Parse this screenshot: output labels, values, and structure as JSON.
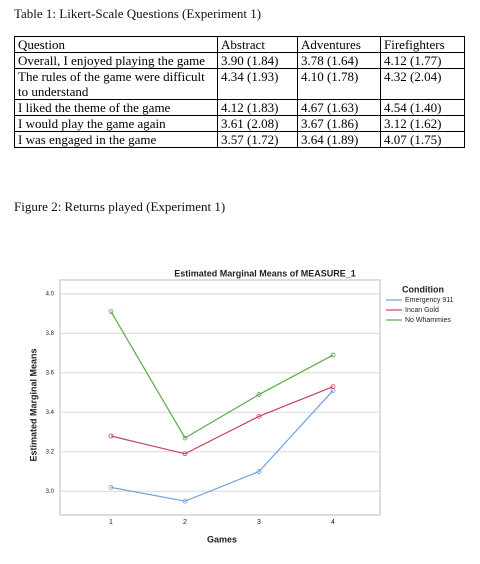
{
  "table": {
    "caption": "Table 1: Likert-Scale Questions (Experiment 1)",
    "header": [
      "Question",
      "Abstract",
      "Adventures",
      "Firefighters"
    ],
    "rows": [
      [
        "Overall, I enjoyed playing the game",
        "3.90 (1.84)",
        "3.78 (1.64)",
        "4.12 (1.77)"
      ],
      [
        "The rules of the game were difficult to understand",
        "4.34 (1.93)",
        "4.10 (1.78)",
        "4.32 (2.04)"
      ],
      [
        "I liked the theme of the game",
        "4.12 (1.83)",
        "4.67 (1.63)",
        "4.54 (1.40)"
      ],
      [
        "I would play the game again",
        "3.61 (2.08)",
        "3.67 (1.86)",
        "3.12 (1.62)"
      ],
      [
        "I was engaged in the game",
        "3.57 (1.72)",
        "3.64 (1.89)",
        "4.07 (1.75)"
      ]
    ]
  },
  "figure_caption": "Figure 2: Returns played (Experiment 1)",
  "chart_data": {
    "type": "line",
    "title": "Estimated Marginal Means of MEASURE_1",
    "x_label": "Games",
    "y_label": "Estimated Marginal Means",
    "legend_title": "Condition",
    "legend": "right",
    "categories": [
      "1",
      "2",
      "3",
      "4"
    ],
    "series": [
      {
        "name": "Emergency 911",
        "color": "#6fa0e0",
        "values": [
          3.02,
          2.95,
          3.1,
          3.51
        ]
      },
      {
        "name": "Incan Gold",
        "color": "#c8435a",
        "values": [
          3.28,
          3.19,
          3.38,
          3.53
        ]
      },
      {
        "name": "No Whammies",
        "color": "#5aa84a",
        "values": [
          3.91,
          3.27,
          3.49,
          3.69
        ]
      }
    ],
    "ylim": [
      2.88,
      4.07
    ],
    "yticks": [
      {
        "value": 3.0,
        "label": "3.0"
      },
      3.2,
      3.4,
      3.6,
      3.8,
      {
        "value": 4.0,
        "label": "4.0"
      }
    ],
    "grid": true
  }
}
